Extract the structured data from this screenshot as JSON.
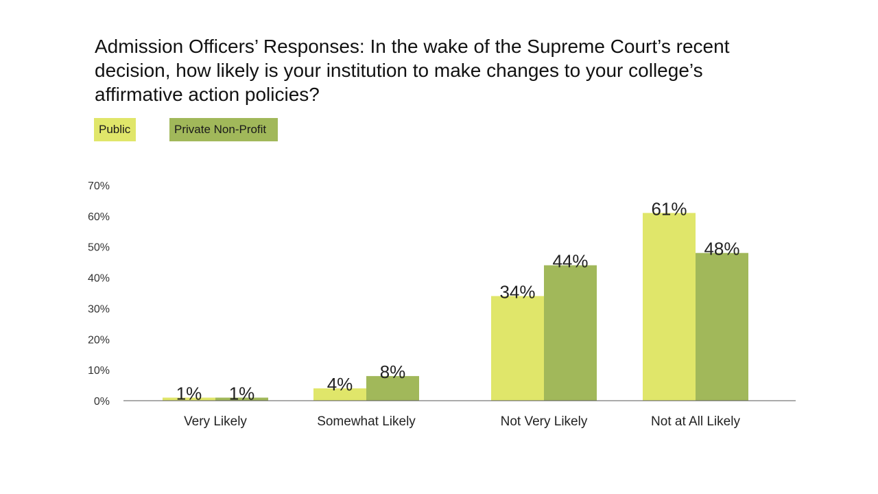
{
  "chart_data": {
    "type": "bar",
    "title": "Admission Officers’ Responses: In the wake of the Supreme Court’s recent decision, how likely is your institution to make changes to your college’s affirmative action policies?",
    "categories": [
      "Very Likely",
      "Somewhat Likely",
      "Not Very Likely",
      "Not at All Likely"
    ],
    "series": [
      {
        "name": "Public",
        "values": [
          1,
          4,
          34,
          61
        ],
        "labels": [
          "1%",
          "4%",
          "34%",
          "61%"
        ],
        "color": "#e0e66a"
      },
      {
        "name": "Private Non-Profit",
        "values": [
          1,
          8,
          44,
          48
        ],
        "labels": [
          "1%",
          "8%",
          "44%",
          "48%"
        ],
        "color": "#a1b85a"
      }
    ],
    "yticks": [
      "0%",
      "10%",
      "20%",
      "30%",
      "40%",
      "50%",
      "60%",
      "70%"
    ],
    "ylim": [
      0,
      70
    ],
    "xlabel": "",
    "ylabel": "",
    "grid": false,
    "legend": "top-left"
  }
}
